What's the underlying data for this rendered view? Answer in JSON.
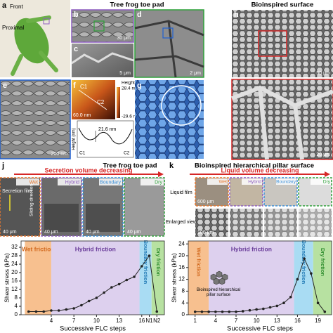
{
  "figure": {
    "a": {
      "label": "a",
      "front": "Front",
      "proximal": "Proximal"
    },
    "toe_title": "Tree frog toe pad",
    "bio_title": "Bioinspired surface",
    "b": {
      "label": "b",
      "scale": "30 μm"
    },
    "c": {
      "label": "c",
      "scale": "5 μm"
    },
    "d": {
      "label": "d",
      "scale": "2 μm"
    },
    "h": {
      "label": "h",
      "scale": "50 μm"
    },
    "i": {
      "label": "i",
      "scale": "20 μm"
    },
    "e": {
      "label": "e",
      "scale": "200 nm"
    },
    "f": {
      "label": "f",
      "c1": "C1",
      "c2": "C2",
      "scale": "60.0 nm",
      "height": "Height",
      "max": "28.4 nm",
      "min": "-29.6 nm",
      "depth": "21.6 nm",
      "axis": "Height (nm)",
      "p1": "C1",
      "p2": "C2"
    },
    "g": {
      "label": "g"
    },
    "j": {
      "label": "j",
      "title": "Tree frog toe pad",
      "arrow": "Secretion volume decreasing",
      "states": [
        "Wet",
        "Hybrid",
        "Boundary",
        "Dry"
      ],
      "film": "Secretion film",
      "sliding": "Sliding direction",
      "scales": [
        "40 μm",
        "40 μm",
        "40 μm",
        "40 μm"
      ]
    },
    "k": {
      "label": "k",
      "title": "Bioinspired hierarchical pillar surface",
      "arrow": "Liquid volume decreasing",
      "states": [
        "Wet",
        "Hybrid",
        "Boundary",
        "Dry"
      ],
      "rows": [
        "Liquid film",
        "Enlarged view"
      ],
      "scales": [
        "600 μm",
        "100 μm"
      ],
      "inset": "Bioinspired hierarchical pillar surface"
    }
  },
  "chart_data": [
    {
      "type": "line",
      "ylabel": "Shear stress (kPa)",
      "xlabel": "Successive FLC steps",
      "color": "#222222",
      "x": [
        1,
        2,
        3,
        4,
        5,
        6,
        7,
        8,
        9,
        10,
        11,
        12,
        13,
        14,
        15,
        16,
        17,
        18
      ],
      "values": [
        1.5,
        1.5,
        1.5,
        2,
        2,
        2.5,
        3,
        4.5,
        6.5,
        8,
        10.5,
        13,
        14.5,
        16.5,
        18,
        23,
        28,
        1.5
      ],
      "xlim": [
        0,
        19
      ],
      "xticks": [
        4,
        7,
        10,
        13,
        16,
        {
          "value": 17,
          "label": "N1"
        },
        {
          "value": 18,
          "label": "N2"
        }
      ],
      "ylim": [
        0,
        35
      ],
      "yticks": [
        0,
        4,
        8,
        12,
        16,
        20,
        24,
        28,
        32
      ],
      "regions": [
        {
          "label": "Wet friction",
          "start": 0.5,
          "end": 4,
          "color": "#f7c08f",
          "text_color": "#d2691e"
        },
        {
          "label": "Hybrid friction",
          "start": 4,
          "end": 15.7,
          "color": "#ddd0ee",
          "text_color": "#6a3d9a"
        },
        {
          "label": "Boundary friction",
          "start": 15.7,
          "end": 17.3,
          "color": "#a9dcf3",
          "text_color": "#1f78b4"
        },
        {
          "label": "Dry friction",
          "start": 17.3,
          "end": 19,
          "color": "#b7e1a1",
          "text_color": "#2a8a2a"
        }
      ]
    },
    {
      "type": "line",
      "ylabel": "Shear stress (kPa)",
      "xlabel": "Successive FLC steps",
      "color": "#222222",
      "x": [
        1,
        2,
        3,
        4,
        5,
        6,
        7,
        8,
        9,
        10,
        11,
        12,
        13,
        14,
        15,
        16,
        17,
        18,
        19,
        20
      ],
      "values": [
        1,
        1,
        1,
        1,
        1,
        1,
        1,
        1.2,
        1.5,
        1.8,
        2,
        2.5,
        3,
        4,
        6,
        12,
        19,
        14,
        4,
        1
      ],
      "xlim": [
        0,
        21
      ],
      "xticks": [
        1,
        4,
        7,
        10,
        13,
        16,
        19
      ],
      "ylim": [
        0,
        25
      ],
      "yticks": [
        0,
        4,
        8,
        12,
        16,
        20,
        24
      ],
      "regions": [
        {
          "label": "Wet friction",
          "start": 0,
          "end": 3,
          "color": "#f7c08f",
          "text_color": "#d2691e"
        },
        {
          "label": "Hybrid friction",
          "start": 3,
          "end": 15.5,
          "color": "#ddd0ee",
          "text_color": "#6a3d9a"
        },
        {
          "label": "Boundary friction",
          "start": 15.5,
          "end": 18.3,
          "color": "#a9dcf3",
          "text_color": "#1f78b4"
        },
        {
          "label": "Dry friction",
          "start": 18.3,
          "end": 21,
          "color": "#b7e1a1",
          "text_color": "#2a8a2a"
        }
      ]
    }
  ]
}
